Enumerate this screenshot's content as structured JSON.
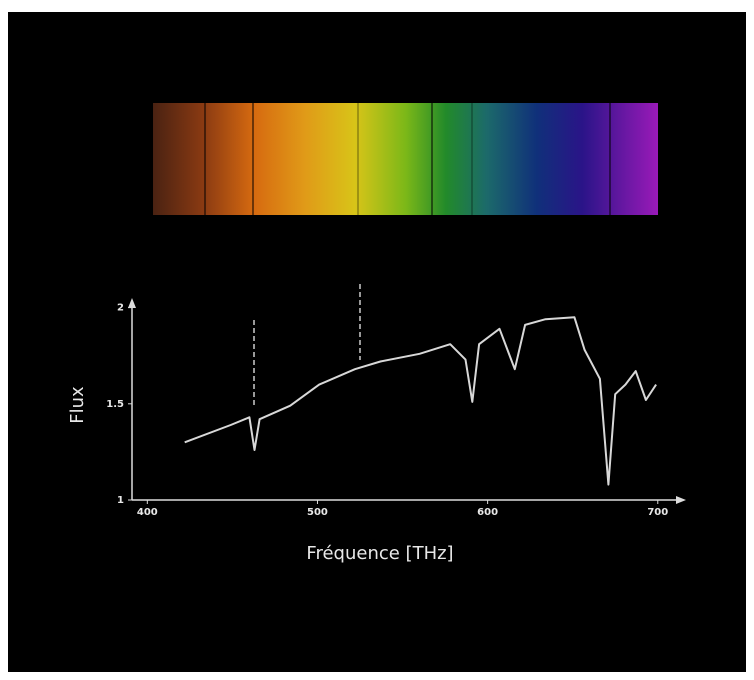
{
  "chart_data": {
    "type": "line",
    "x_label": "Fréquence  [THz]",
    "y_label": "Flux",
    "x": [
      422,
      449,
      460,
      463,
      466,
      484,
      501,
      522,
      537,
      560,
      578,
      587,
      591,
      595,
      607,
      616,
      622,
      634,
      651,
      657,
      666,
      671,
      675,
      681,
      687,
      693,
      699
    ],
    "series": [
      {
        "color": "#d8d8d8",
        "values": [
          1.3,
          1.39,
          1.43,
          1.26,
          1.42,
          1.49,
          1.6,
          1.68,
          1.72,
          1.76,
          1.81,
          1.73,
          1.51,
          1.81,
          1.89,
          1.68,
          1.91,
          1.94,
          1.95,
          1.78,
          1.63,
          1.08,
          1.55,
          1.6,
          1.67,
          1.52,
          1.6
        ]
      }
    ],
    "xlim": [
      391,
      716
    ],
    "ylim": [
      1,
      2.05
    ],
    "xticks": [
      400,
      500,
      600,
      700
    ],
    "yticks": [
      1,
      1.5,
      2
    ]
  }
}
